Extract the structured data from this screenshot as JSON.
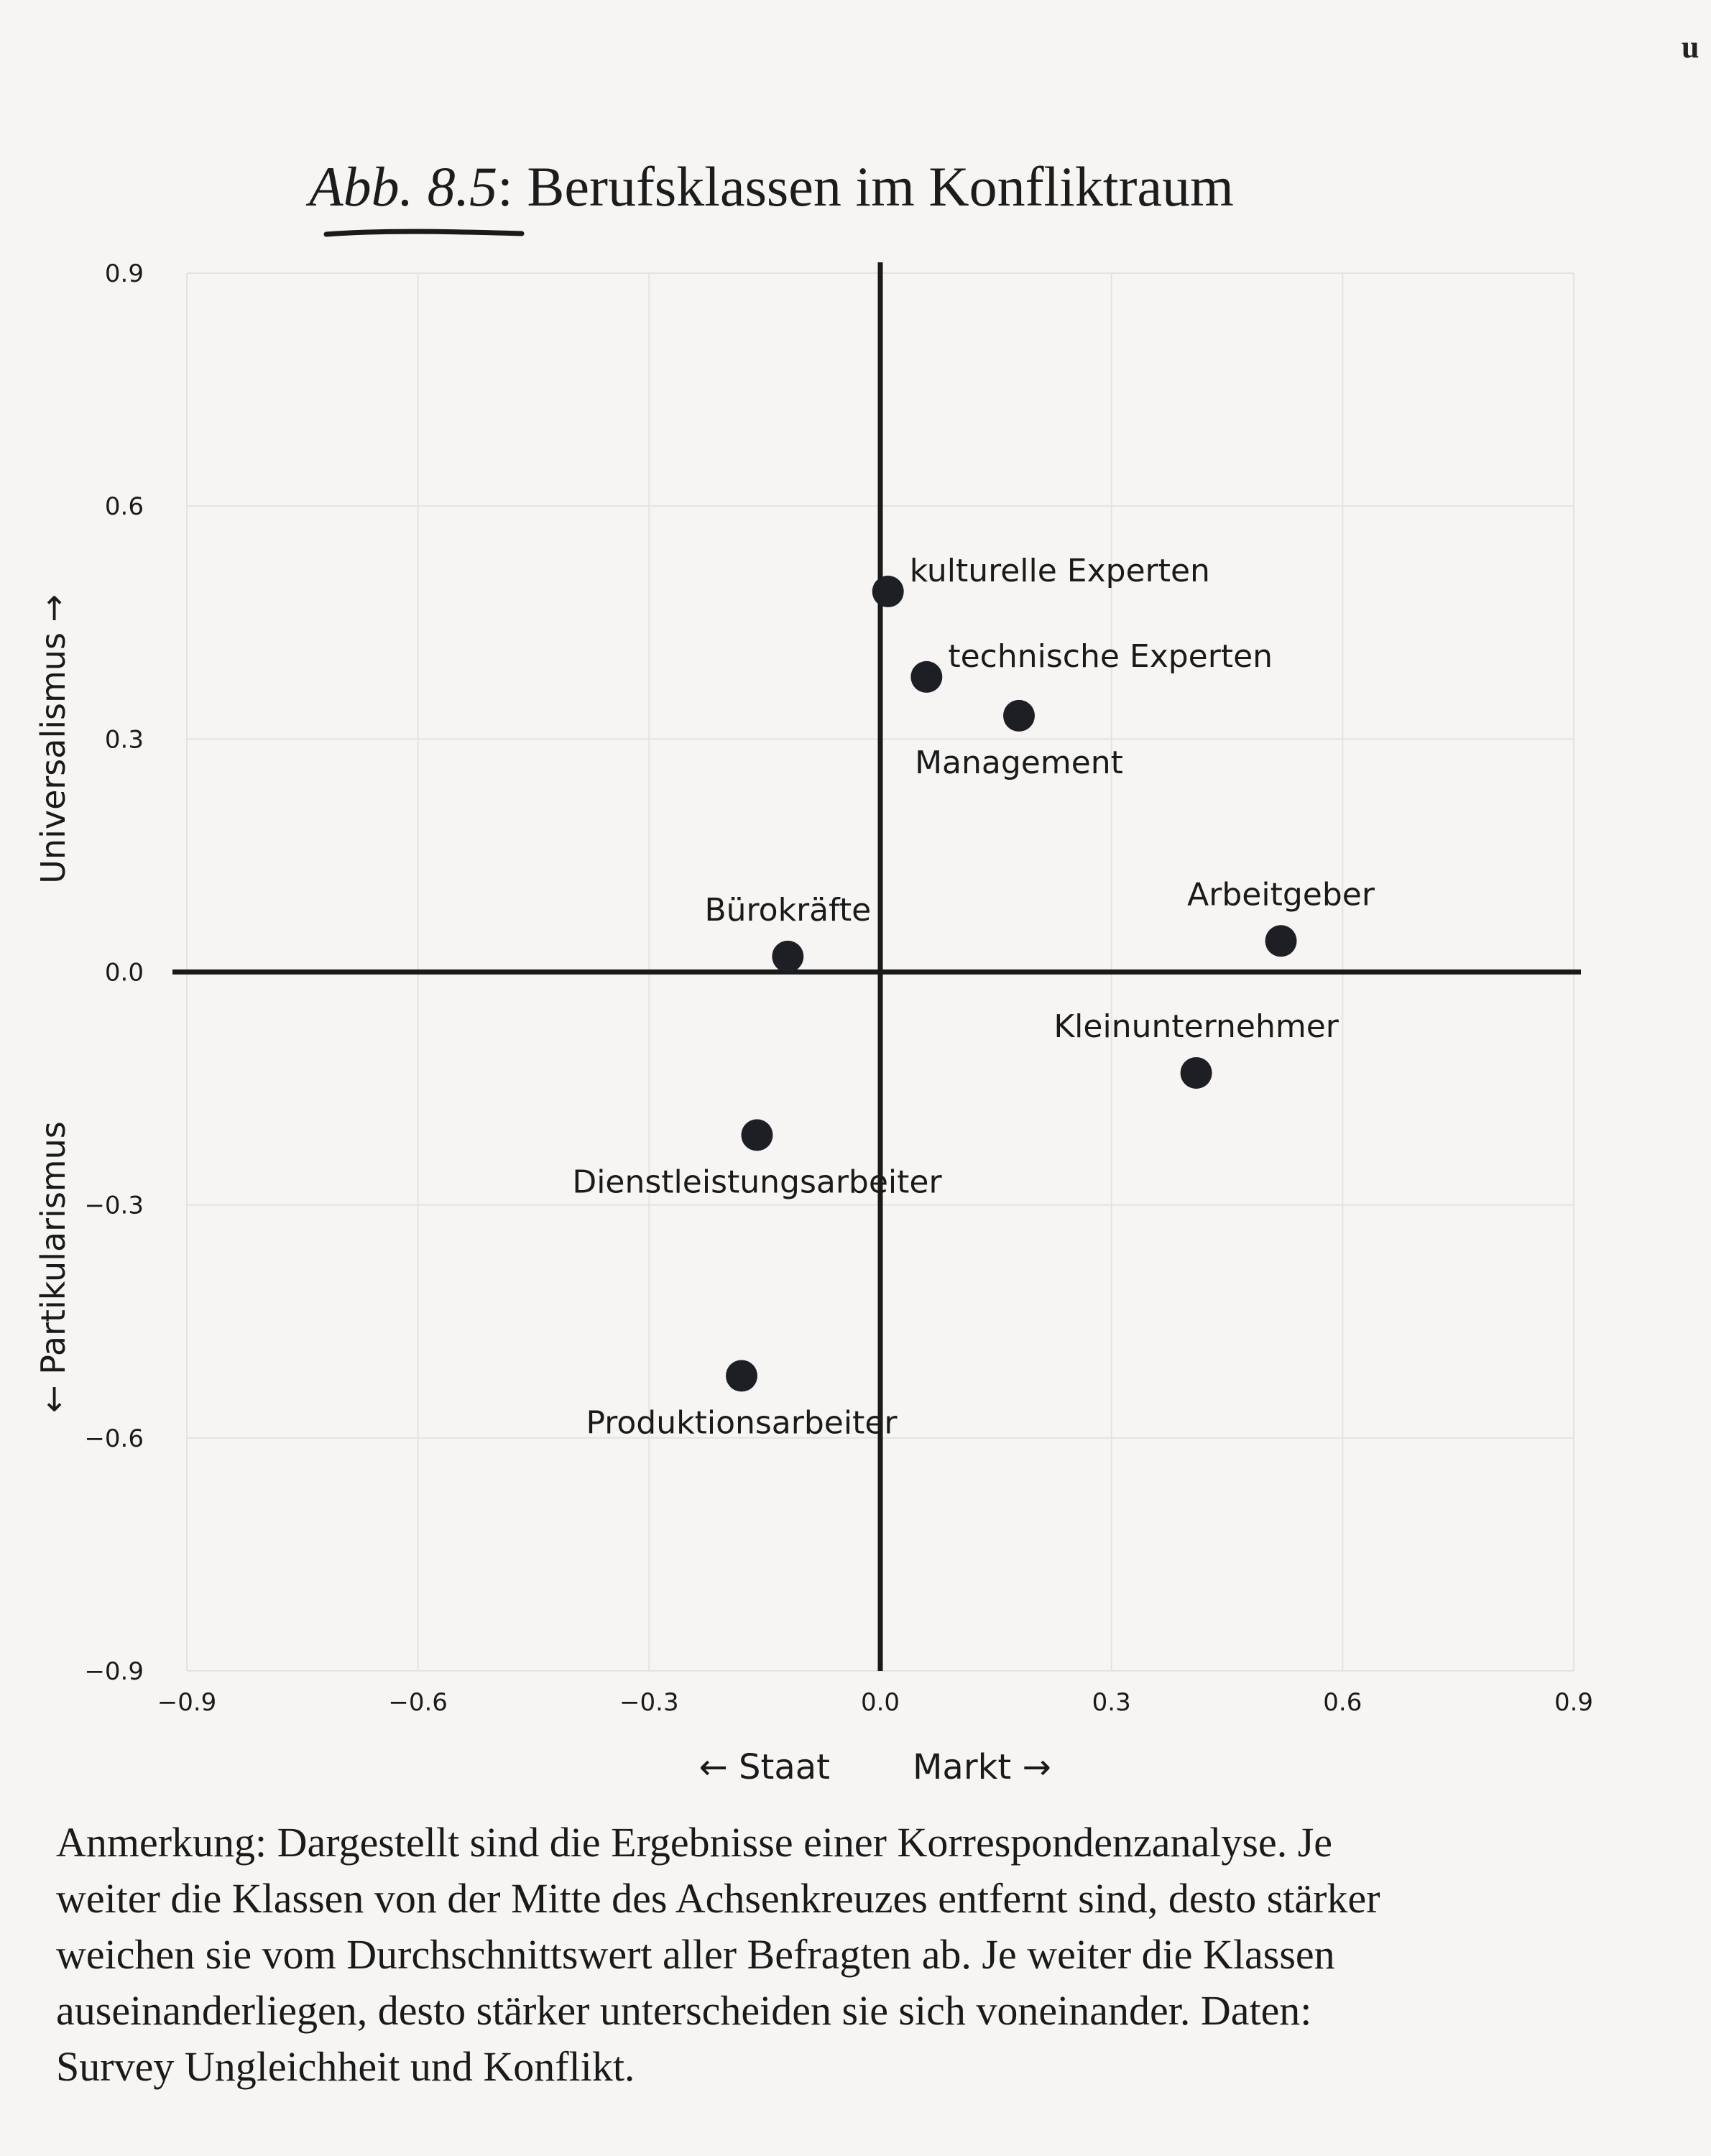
{
  "title": {
    "prefix": "Abb. 8.5",
    "text": ": Berufsklassen im Konfliktraum"
  },
  "corner_mark": "u",
  "chart_data": {
    "type": "scatter",
    "title": "Berufsklassen im Konfliktraum",
    "xlabel_left": "← Staat",
    "xlabel_right": "Markt →",
    "ylabel_top": "Universalismus →",
    "ylabel_bottom": "← Partikularismus",
    "xlim": [
      -0.9,
      0.9
    ],
    "ylim": [
      -0.9,
      0.9
    ],
    "xticks": [
      "−0.9",
      "−0.6",
      "−0.3",
      "0.0",
      "0.3",
      "0.6",
      "0.9"
    ],
    "yticks": [
      "0.9",
      "0.6",
      "0.3",
      "0.0",
      "−0.3",
      "−0.6",
      "−0.9"
    ],
    "grid": true,
    "points": [
      {
        "label": "kulturelle Experten",
        "x": 0.01,
        "y": 0.49,
        "label_pos": "above-right"
      },
      {
        "label": "technische Experten",
        "x": 0.06,
        "y": 0.38,
        "label_pos": "above-right"
      },
      {
        "label": "Management",
        "x": 0.18,
        "y": 0.33,
        "label_pos": "below"
      },
      {
        "label": "Bürokräfte",
        "x": -0.12,
        "y": 0.02,
        "label_pos": "above"
      },
      {
        "label": "Arbeitgeber",
        "x": 0.52,
        "y": 0.04,
        "label_pos": "above"
      },
      {
        "label": "Kleinunternehmer",
        "x": 0.41,
        "y": -0.13,
        "label_pos": "above"
      },
      {
        "label": "Dienstleistungsarbeiter",
        "x": -0.16,
        "y": -0.21,
        "label_pos": "below"
      },
      {
        "label": "Produktionsarbeiter",
        "x": -0.18,
        "y": -0.52,
        "label_pos": "below"
      }
    ]
  },
  "note": {
    "lines": [
      "Anmerkung: Dargestellt sind die Ergebnisse einer Korrespondenzanalyse. Je",
      "weiter die Klassen von der Mitte des Achsenkreuzes entfernt sind, desto stärker",
      "weichen sie vom Durchschnittswert aller Befragten ab. Je weiter die Klassen",
      "auseinanderliegen, desto stärker unterscheiden sie sich voneinander. Daten:",
      "Survey Ungleichheit und Konflikt."
    ]
  },
  "colors": {
    "ink": "#1a1a1a",
    "grid": "#e4e3e0",
    "background": "#f6f5f3"
  }
}
